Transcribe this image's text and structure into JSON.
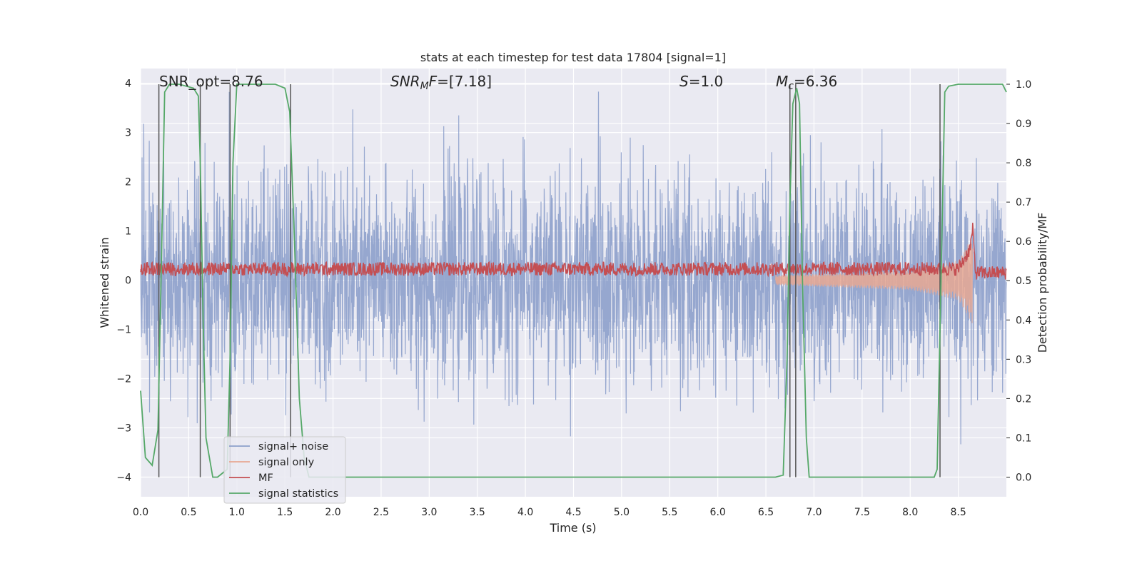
{
  "chart_data": {
    "type": "line",
    "title": "stats at each timestep for test data 17804 [signal=1]",
    "xlabel": "Time (s)",
    "ylabel_left": "Whitened strain",
    "ylabel_right": "Detection probability/MF",
    "xlim": [
      0.0,
      9.0
    ],
    "ylim_left": [
      -4.4,
      4.3
    ],
    "ylim_right": [
      -0.05,
      1.04
    ],
    "x_ticks": [
      "0.0",
      "0.5",
      "1.0",
      "1.5",
      "2.0",
      "2.5",
      "3.0",
      "3.5",
      "4.0",
      "4.5",
      "5.0",
      "5.5",
      "6.0",
      "6.5",
      "7.0",
      "7.5",
      "8.0",
      "8.5"
    ],
    "y_ticks_left": [
      "4",
      "3",
      "2",
      "1",
      "0",
      "−1",
      "−2",
      "−3",
      "−4"
    ],
    "y_ticks_right": [
      "1.0",
      "0.9",
      "0.8",
      "0.7",
      "0.6",
      "0.5",
      "0.4",
      "0.3",
      "0.2",
      "0.1",
      "0.0"
    ],
    "grid": true,
    "legend_position": "lower-left",
    "annotations": {
      "snr_opt": "SNR_opt=8.76",
      "snr_mf_prefix": "SNR",
      "snr_mf_sub": "M",
      "snr_mf_suffix": "F",
      "snr_mf_value": "=[7.18]",
      "s_symbol": "S",
      "s_value": "=1.0",
      "mc_symbol": "M",
      "mc_sub": "c",
      "mc_value": "=6.36"
    },
    "series": [
      {
        "name": "signal+ noise",
        "color": "#8da0cb",
        "axis": "left",
        "description_range": [
          -3.5,
          4.0
        ]
      },
      {
        "name": "signal only",
        "color": "#e8a893",
        "axis": "left",
        "x": [
          6.6,
          8.0,
          8.5,
          8.65
        ],
        "envelope": [
          0.1,
          0.2,
          0.4,
          0.9
        ]
      },
      {
        "name": "MF",
        "color": "#c44e52",
        "axis": "right",
        "x": [
          0.0,
          8.5,
          8.62,
          8.65,
          8.68,
          9.0
        ],
        "values": [
          0.53,
          0.53,
          0.58,
          0.63,
          0.52,
          0.52
        ]
      },
      {
        "name": "signal statistics",
        "color": "#55a868",
        "axis": "right",
        "x": [
          0.0,
          0.05,
          0.12,
          0.18,
          0.22,
          0.25,
          0.3,
          0.4,
          0.55,
          0.6,
          0.62,
          0.65,
          0.68,
          0.75,
          0.8,
          0.85,
          0.9,
          0.93,
          0.96,
          1.0,
          1.2,
          1.4,
          1.5,
          1.55,
          1.6,
          1.65,
          1.7,
          1.75,
          2.0,
          6.6,
          6.68,
          6.72,
          6.75,
          6.78,
          6.82,
          6.85,
          6.88,
          6.92,
          6.95,
          7.0,
          8.0,
          8.25,
          8.28,
          8.32,
          8.36,
          8.4,
          8.5,
          8.96,
          9.0
        ],
        "values": [
          0.22,
          0.05,
          0.03,
          0.12,
          0.6,
          0.98,
          1.0,
          1.0,
          0.99,
          0.97,
          0.8,
          0.4,
          0.1,
          0.0,
          0.0,
          0.01,
          0.02,
          0.3,
          0.8,
          1.0,
          1.0,
          1.0,
          0.99,
          0.93,
          0.6,
          0.2,
          0.05,
          0.0,
          0.0,
          0.0,
          0.005,
          0.3,
          0.7,
          0.95,
          0.99,
          0.95,
          0.5,
          0.1,
          0.0,
          0.0,
          0.0,
          0.0,
          0.02,
          0.5,
          0.98,
          0.995,
          1.0,
          1.0,
          0.98
        ]
      }
    ],
    "detection_lines_x": [
      0.19,
      0.62,
      0.93,
      1.56,
      6.75,
      6.81,
      8.31
    ]
  }
}
